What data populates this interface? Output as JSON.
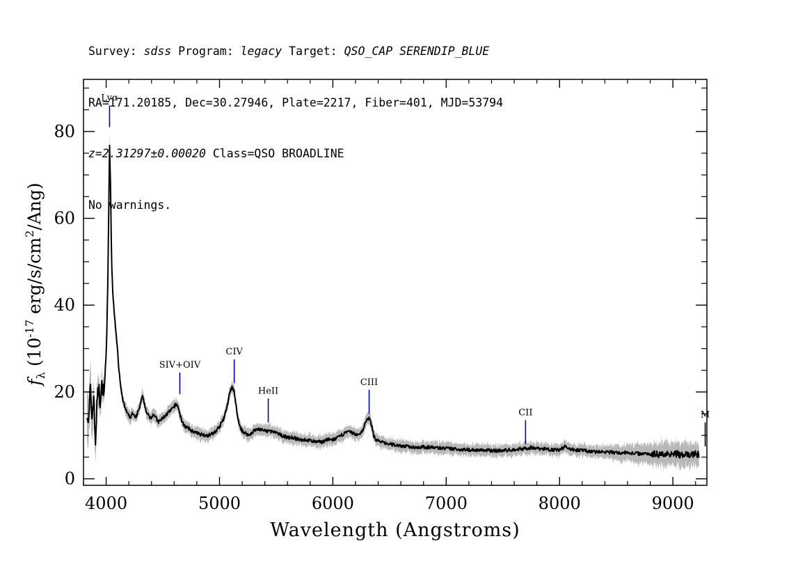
{
  "header": {
    "survey_label": "Survey:",
    "survey_value": "sdss",
    "program_label": "Program:",
    "program_value": "legacy",
    "target_label": "Target:",
    "target_value": "QSO_CAP SERENDIP_BLUE",
    "coords_line": "RA=171.20185, Dec=30.27946, Plate=2217, Fiber=401, MJD=53794",
    "redshift_value": "z=2.31297±0.00020",
    "class_value": "Class=QSO BROADLINE",
    "warnings_line": "No warnings."
  },
  "chart_data": {
    "type": "line",
    "xlabel": "Wavelength (Angstroms)",
    "ylabel_prefix": "f",
    "ylabel_subscript": "λ",
    "ylabel_open": "(10",
    "ylabel_exp1": "-17",
    "ylabel_mid": "erg/s/cm",
    "ylabel_exp2": "2",
    "ylabel_close": "/Ang)",
    "xlim": [
      3800,
      9300
    ],
    "ylim": [
      -1.5,
      92
    ],
    "xticks": [
      4000,
      5000,
      6000,
      7000,
      8000,
      9000
    ],
    "xtick_labels": [
      "4000",
      "5000",
      "6000",
      "7000",
      "8000",
      "9000"
    ],
    "yticks": [
      0,
      20,
      40,
      60,
      80
    ],
    "ytick_labels": [
      "0",
      "20",
      "40",
      "60",
      "80"
    ],
    "grid": false,
    "series": [
      {
        "style": "black flux",
        "color": "#000000",
        "x": [
          3830,
          3845,
          3860,
          3875,
          3890,
          3905,
          3920,
          3935,
          3950,
          3965,
          3980,
          3995,
          4005,
          4015,
          4022,
          4030,
          4038,
          4048,
          4060,
          4075,
          4090,
          4110,
          4130,
          4150,
          4170,
          4190,
          4210,
          4230,
          4260,
          4290,
          4320,
          4340,
          4360,
          4390,
          4420,
          4460,
          4500,
          4540,
          4580,
          4610,
          4630,
          4650,
          4670,
          4700,
          4730,
          4760,
          4800,
          4850,
          4900,
          4950,
          5000,
          5040,
          5070,
          5090,
          5110,
          5130,
          5145,
          5160,
          5180,
          5200,
          5230,
          5260,
          5300,
          5350,
          5400,
          5450,
          5500,
          5550,
          5600,
          5650,
          5700,
          5750,
          5800,
          5850,
          5900,
          5950,
          6000,
          6050,
          6100,
          6150,
          6180,
          6220,
          6260,
          6290,
          6310,
          6330,
          6345,
          6360,
          6380,
          6420,
          6460,
          6500,
          6550,
          6600,
          6700,
          6800,
          6900,
          7000,
          7100,
          7200,
          7300,
          7400,
          7500,
          7600,
          7700,
          7750,
          7800,
          7900,
          8000,
          8050,
          8100,
          8200,
          8300,
          8400,
          8500,
          8600,
          8700,
          8800,
          8900,
          8950,
          9000,
          9050,
          9100,
          9150,
          9200,
          9230
        ],
        "y": [
          16,
          12,
          21,
          14,
          19,
          8,
          18,
          21,
          17,
          22,
          20,
          25,
          33,
          46,
          60,
          77,
          68,
          50,
          42,
          37,
          33,
          26,
          21,
          18,
          16,
          15,
          14,
          15,
          14,
          16,
          19,
          17,
          15,
          14,
          15,
          13,
          14,
          15,
          16,
          17,
          17,
          15,
          13,
          12,
          11.5,
          11,
          10.5,
          10.2,
          10,
          10.5,
          12,
          14,
          17,
          20,
          21,
          20,
          17,
          14,
          12,
          11,
          10.5,
          10,
          11,
          11.5,
          11,
          11,
          10.5,
          10,
          9.5,
          9.5,
          9,
          9,
          8.8,
          8.5,
          8.5,
          9,
          9,
          9.5,
          10.5,
          10.8,
          10.5,
          10,
          11,
          13,
          14,
          13.5,
          12,
          10,
          9,
          8.5,
          8.2,
          8,
          7.8,
          7.6,
          7.3,
          7.3,
          7.2,
          7,
          6.8,
          6.7,
          6.6,
          6.5,
          6.5,
          6.7,
          7,
          7.2,
          7,
          6.8,
          6.6,
          7.5,
          6.8,
          6.5,
          6.2,
          6.2,
          6,
          6,
          5.8,
          5.8,
          5.6,
          5.7,
          6,
          5.6,
          5.4,
          5.5,
          5.8,
          5.5
        ]
      },
      {
        "style": "grey error envelope",
        "color": "#b8b8b8",
        "halfwidth": [
          6,
          6,
          6,
          5,
          5,
          5,
          4,
          4,
          3,
          3,
          3,
          2,
          2,
          2,
          2,
          3,
          3,
          2,
          2,
          2,
          2,
          1.5,
          1.5,
          1.5,
          1.5,
          1.5,
          1.5,
          1.5,
          1.5,
          1.5,
          1.5,
          1.5,
          1.5,
          1.5,
          1.5,
          1.5,
          1.5,
          1.5,
          1.5,
          1.5,
          1.5,
          1.5,
          1.5,
          1.5,
          1.5,
          1.5,
          1.5,
          1.5,
          1.5,
          1.5,
          1.5,
          1.5,
          1.5,
          1.5,
          1.5,
          1.5,
          1.5,
          1.5,
          1.5,
          1.5,
          1.5,
          1.5,
          1.5,
          1.5,
          1.5,
          1.5,
          1.5,
          1.5,
          1.5,
          1.5,
          1.5,
          1.5,
          1.5,
          1.5,
          1.5,
          1.5,
          1.5,
          1.5,
          1.5,
          1.5,
          1.5,
          1.5,
          1.5,
          1.5,
          1.5,
          1.5,
          1.5,
          1.5,
          1.5,
          1.5,
          1.5,
          1.5,
          1.5,
          1.5,
          1.5,
          1.5,
          1.5,
          1.5,
          1.5,
          1.5,
          1.5,
          1.5,
          1.5,
          1.5,
          1.5,
          1.5,
          1.5,
          1.5,
          1.5,
          1.5,
          1.5,
          1.5,
          1.5,
          1.5,
          2,
          2,
          2.5,
          2.5,
          3,
          3,
          3,
          3,
          3,
          3,
          3,
          3
        ]
      }
    ],
    "annotations": [
      {
        "label": "Lyα",
        "x": 4030,
        "y_top": 86,
        "y_bottom": 81,
        "color": "#0000cc"
      },
      {
        "label": "SIV+OIV",
        "x": 4650,
        "y_top": 24.5,
        "y_bottom": 19.5,
        "color": "#0000cc"
      },
      {
        "label": "CIV",
        "x": 5130,
        "y_top": 27.5,
        "y_bottom": 22,
        "color": "#0000cc"
      },
      {
        "label": "HeII",
        "x": 5430,
        "y_top": 18.5,
        "y_bottom": 13,
        "color": "#0000cc"
      },
      {
        "label": "CIII",
        "x": 6320,
        "y_top": 20.5,
        "y_bottom": 15,
        "color": "#0000cc"
      },
      {
        "label": "CII",
        "x": 7700,
        "y_top": 13.5,
        "y_bottom": 8,
        "color": "#0000cc"
      },
      {
        "label": "M",
        "x": 9285,
        "y_top": 13,
        "y_bottom": 7.5,
        "color": "#000000"
      }
    ]
  }
}
